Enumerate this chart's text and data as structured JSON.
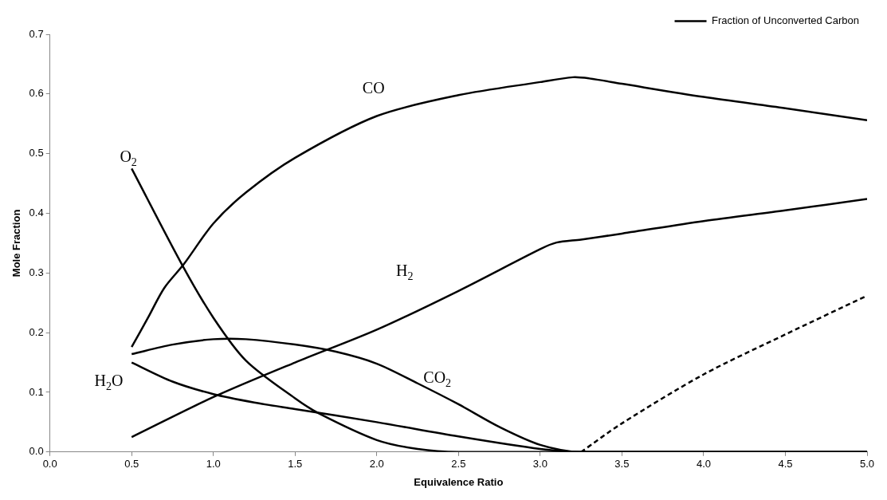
{
  "chart_data": {
    "type": "line",
    "xlabel": "Equivalence Ratio",
    "ylabel": "Mole Fraction",
    "xlim": [
      0,
      5
    ],
    "ylim": [
      0,
      0.7
    ],
    "xticks": [
      {
        "value": 0,
        "label": "0.0"
      },
      {
        "value": 0.5,
        "label": "0.5"
      },
      {
        "value": 1,
        "label": "1.0"
      },
      {
        "value": 1.5,
        "label": "1.5"
      },
      {
        "value": 2,
        "label": "2.0"
      },
      {
        "value": 2.5,
        "label": "2.5"
      },
      {
        "value": 3,
        "label": "3.0"
      },
      {
        "value": 3.5,
        "label": "3.5"
      },
      {
        "value": 4,
        "label": "4.0"
      },
      {
        "value": 4.5,
        "label": "4.5"
      },
      {
        "value": 5,
        "label": "5.0"
      }
    ],
    "yticks": [
      {
        "value": 0,
        "label": "0.0"
      },
      {
        "value": 0.1,
        "label": "0.1"
      },
      {
        "value": 0.2,
        "label": "0.2"
      },
      {
        "value": 0.3,
        "label": "0.3"
      },
      {
        "value": 0.4,
        "label": "0.4"
      },
      {
        "value": 0.5,
        "label": "0.5"
      },
      {
        "value": 0.6,
        "label": "0.6"
      },
      {
        "value": 0.7,
        "label": "0.7"
      }
    ],
    "grid": false,
    "legend": "top right",
    "marker": "none",
    "series": [
      {
        "color": "#000000",
        "line_style": "solid",
        "x": [
          0.5,
          0.6,
          0.7,
          0.82,
          1.0,
          1.2,
          1.5,
          2.0,
          2.5,
          3.0,
          3.2,
          3.3,
          3.5,
          4.0,
          4.5,
          5.0
        ],
        "values": [
          0.176,
          0.225,
          0.275,
          0.315,
          0.383,
          0.435,
          0.493,
          0.563,
          0.598,
          0.62,
          0.628,
          0.626,
          0.617,
          0.595,
          0.576,
          0.556
        ]
      },
      {
        "color": "#000000",
        "line_style": "solid",
        "x": [
          0.5,
          0.81,
          1.0,
          1.2,
          1.5,
          1.65,
          2.0,
          2.25,
          2.5,
          5.0
        ],
        "values": [
          0.475,
          0.313,
          0.225,
          0.153,
          0.09,
          0.064,
          0.02,
          0.005,
          0,
          0
        ]
      },
      {
        "color": "#000000",
        "line_style": "solid",
        "x": [
          0.5,
          0.75,
          1.0,
          1.25,
          1.5,
          2.0,
          2.5,
          3.0,
          3.25,
          5.0
        ],
        "values": [
          0.15,
          0.118,
          0.097,
          0.083,
          0.072,
          0.05,
          0.026,
          0.005,
          0,
          0
        ]
      },
      {
        "color": "#000000",
        "line_style": "solid",
        "x": [
          0.5,
          0.75,
          1.0,
          1.2,
          1.5,
          1.75,
          2.0,
          2.25,
          2.5,
          2.75,
          3.0,
          3.25,
          5.0
        ],
        "values": [
          0.164,
          0.18,
          0.189,
          0.189,
          0.18,
          0.168,
          0.148,
          0.115,
          0.08,
          0.042,
          0.012,
          0,
          0
        ]
      },
      {
        "color": "#000000",
        "line_style": "solid",
        "x": [
          0.5,
          1.0,
          1.5,
          2.0,
          2.5,
          3.0,
          3.1,
          3.25,
          3.5,
          4.0,
          4.5,
          5.0
        ],
        "values": [
          0.025,
          0.092,
          0.15,
          0.205,
          0.27,
          0.34,
          0.351,
          0.356,
          0.366,
          0.387,
          0.405,
          0.424
        ]
      },
      {
        "name": "Fraction of Unconverted Carbon",
        "color": "#000000",
        "line_style": "dashed",
        "x": [
          3.25,
          3.5,
          4.0,
          4.5,
          5.0
        ],
        "values": [
          0,
          0.048,
          0.13,
          0.197,
          0.262
        ]
      }
    ],
    "annotations": [
      "CO",
      "O$_{2}$",
      "H$_{2}$",
      "H$_{2}$O",
      "CO$_{2}$"
    ]
  }
}
